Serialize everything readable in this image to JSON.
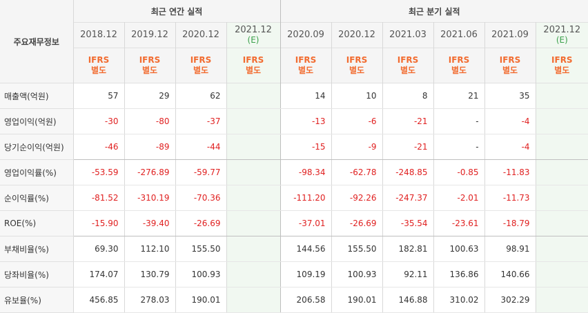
{
  "header": {
    "label": "주요재무정보",
    "annual_title": "최근 연간 실적",
    "quarter_title": "최근 분기 실적",
    "annual_periods": [
      {
        "label": "2018.12",
        "sub": ""
      },
      {
        "label": "2019.12",
        "sub": ""
      },
      {
        "label": "2020.12",
        "sub": ""
      },
      {
        "label": "2021.12",
        "sub": "(E)"
      }
    ],
    "quarter_periods": [
      {
        "label": "2020.09",
        "sub": ""
      },
      {
        "label": "2020.12",
        "sub": ""
      },
      {
        "label": "2021.03",
        "sub": ""
      },
      {
        "label": "2021.06",
        "sub": ""
      },
      {
        "label": "2021.09",
        "sub": ""
      },
      {
        "label": "2021.12",
        "sub": "(E)"
      }
    ],
    "basis_line1": "IFRS",
    "basis_line2": "별도"
  },
  "rows": [
    {
      "label": "매출액(억원)",
      "annual": [
        "57",
        "29",
        "62",
        ""
      ],
      "quarter": [
        "14",
        "10",
        "8",
        "21",
        "35",
        ""
      ]
    },
    {
      "label": "영업이익(억원)",
      "annual": [
        "-30",
        "-80",
        "-37",
        ""
      ],
      "quarter": [
        "-13",
        "-6",
        "-21",
        "-",
        "-4",
        ""
      ]
    },
    {
      "label": "당기순이익(억원)",
      "annual": [
        "-46",
        "-89",
        "-44",
        ""
      ],
      "quarter": [
        "-15",
        "-9",
        "-21",
        "-",
        "-4",
        ""
      ]
    },
    {
      "label": "영업이익률(%)",
      "annual": [
        "-53.59",
        "-276.89",
        "-59.77",
        ""
      ],
      "quarter": [
        "-98.34",
        "-62.78",
        "-248.85",
        "-0.85",
        "-11.83",
        ""
      ]
    },
    {
      "label": "순이익률(%)",
      "annual": [
        "-81.52",
        "-310.19",
        "-70.36",
        ""
      ],
      "quarter": [
        "-111.20",
        "-92.26",
        "-247.37",
        "-2.01",
        "-11.73",
        ""
      ]
    },
    {
      "label": "ROE(%)",
      "annual": [
        "-15.90",
        "-39.40",
        "-26.69",
        ""
      ],
      "quarter": [
        "-37.01",
        "-26.69",
        "-35.54",
        "-23.61",
        "-18.79",
        ""
      ]
    },
    {
      "label": "부채비율(%)",
      "annual": [
        "69.30",
        "112.10",
        "155.50",
        ""
      ],
      "quarter": [
        "144.56",
        "155.50",
        "182.81",
        "100.63",
        "98.91",
        ""
      ]
    },
    {
      "label": "당좌비율(%)",
      "annual": [
        "174.07",
        "130.79",
        "100.93",
        ""
      ],
      "quarter": [
        "109.19",
        "100.93",
        "92.11",
        "136.86",
        "140.66",
        ""
      ]
    },
    {
      "label": "유보율(%)",
      "annual": [
        "456.85",
        "278.03",
        "190.01",
        ""
      ],
      "quarter": [
        "206.58",
        "190.01",
        "146.88",
        "310.02",
        "302.29",
        ""
      ]
    }
  ],
  "colors": {
    "negative": "#e02020",
    "basis": "#f26b2f",
    "estimate": "#3aa04a"
  }
}
